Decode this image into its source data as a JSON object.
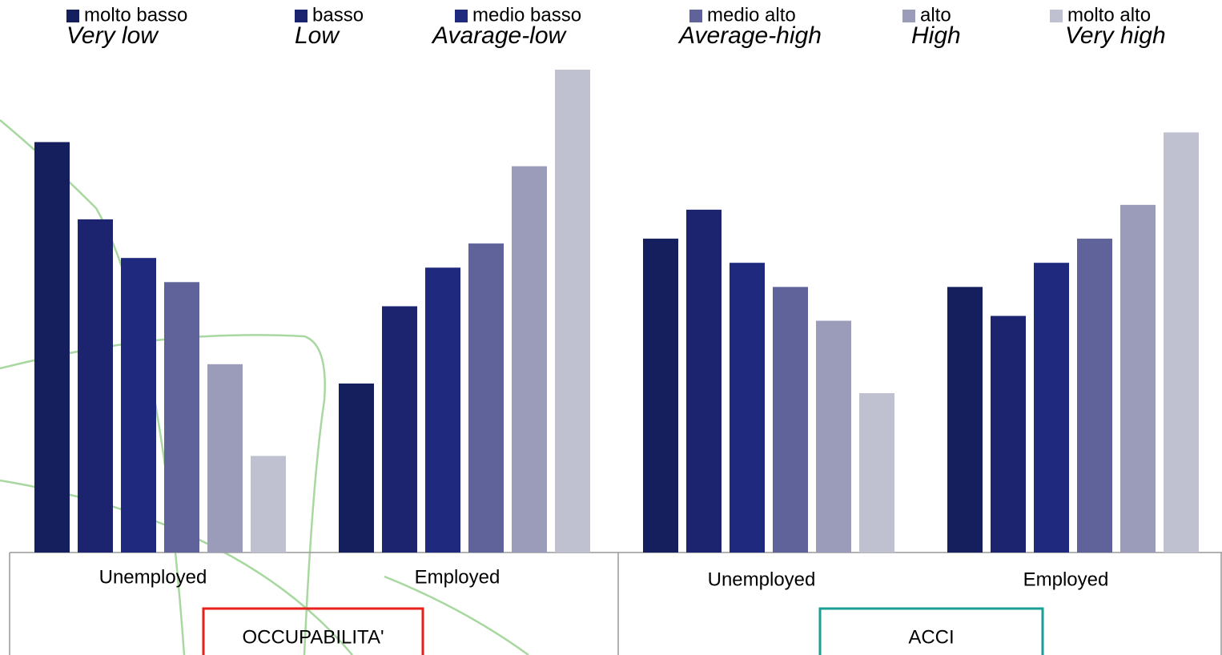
{
  "chart_data": {
    "type": "bar",
    "groups": [
      {
        "label": "OCCUPABILITA'",
        "categories": [
          "Unemployed",
          "Employed"
        ],
        "box_color": "#e8201c"
      },
      {
        "label": "ACCI",
        "categories": [
          "Unemployed",
          "Employed"
        ],
        "box_color": "#1a9e96"
      }
    ],
    "series": [
      {
        "name": "molto basso",
        "translation": "Very low",
        "color": "#151f5e",
        "values": [
          85,
          35,
          65,
          55
        ]
      },
      {
        "name": "basso",
        "translation": "Low",
        "color": "#1c2470",
        "values": [
          69,
          51,
          71,
          49
        ]
      },
      {
        "name": "medio basso",
        "translation": "Avarage-low",
        "color": "#1f2a7e",
        "values": [
          61,
          59,
          60,
          60
        ]
      },
      {
        "name": "medio alto",
        "translation": "Average-high",
        "color": "#5f6399",
        "values": [
          56,
          64,
          55,
          65
        ]
      },
      {
        "name": "alto",
        "translation": "High",
        "color": "#9a9cba",
        "values": [
          39,
          80,
          48,
          72
        ]
      },
      {
        "name": "molto alto",
        "translation": "Very high",
        "color": "#bfc0d0",
        "values": [
          20,
          100,
          33,
          87
        ]
      }
    ],
    "ylim": [
      0,
      100
    ],
    "translation_color": "#e87722"
  }
}
